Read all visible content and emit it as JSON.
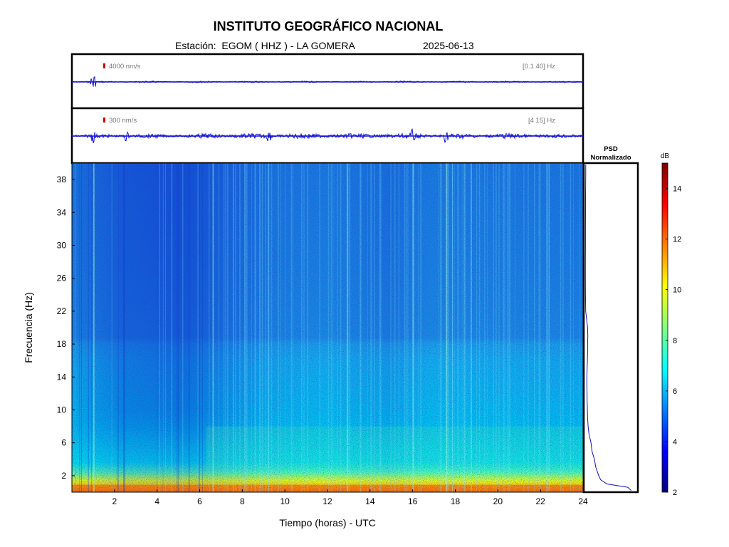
{
  "header": {
    "title": "INSTITUTO GEOGRÁFICO NACIONAL",
    "station_text": "Estación:  EGOM ( HHZ ) - LA GOMERA",
    "date": "2025-06-13"
  },
  "traces": [
    {
      "scale_label": "4000 nm/s",
      "band_label": "[0.1 40] Hz",
      "event_hours": [
        1.0
      ]
    },
    {
      "scale_label": "300 nm/s",
      "band_label": "[4 15] Hz",
      "event_hours": [
        1.0,
        2.55,
        9.25,
        16.0,
        17.55
      ]
    }
  ],
  "chart_data": {
    "type": "heatmap",
    "xlabel": "Tiempo (horas) - UTC",
    "ylabel": "Frecuencia  (Hz)",
    "xlim": [
      0,
      24
    ],
    "ylim": [
      0,
      40
    ],
    "x_ticks": [
      2,
      4,
      6,
      8,
      10,
      12,
      14,
      16,
      18,
      20,
      22,
      24
    ],
    "y_ticks": [
      2,
      6,
      10,
      14,
      18,
      22,
      26,
      30,
      34,
      38
    ],
    "colorbar": {
      "unit": "dB",
      "range": [
        2,
        15
      ],
      "ticks": [
        2,
        4,
        6,
        8,
        10,
        12,
        14
      ],
      "colormap": "jet"
    },
    "psd": {
      "title_line1": "PSD",
      "title_line2": "Normalizado",
      "freq_hz": [
        0.2,
        0.6,
        1,
        1.5,
        2,
        3,
        4,
        5,
        6,
        7,
        8,
        9,
        10,
        11,
        12,
        13,
        14,
        15,
        16,
        17,
        18,
        19,
        20,
        20.5,
        21,
        21.5,
        22,
        24,
        26,
        28,
        30,
        32,
        34,
        36,
        38,
        39.8
      ],
      "level": [
        0.95,
        0.88,
        0.45,
        0.32,
        0.28,
        0.22,
        0.19,
        0.14,
        0.12,
        0.08,
        0.06,
        0.05,
        0.045,
        0.04,
        0.038,
        0.036,
        0.035,
        0.04,
        0.045,
        0.05,
        0.05,
        0.055,
        0.05,
        0.04,
        0.03,
        0.02,
        0.01,
        0.006,
        0.005,
        0.005,
        0.006,
        0.006,
        0.007,
        0.008,
        0.01,
        0.012
      ]
    }
  }
}
